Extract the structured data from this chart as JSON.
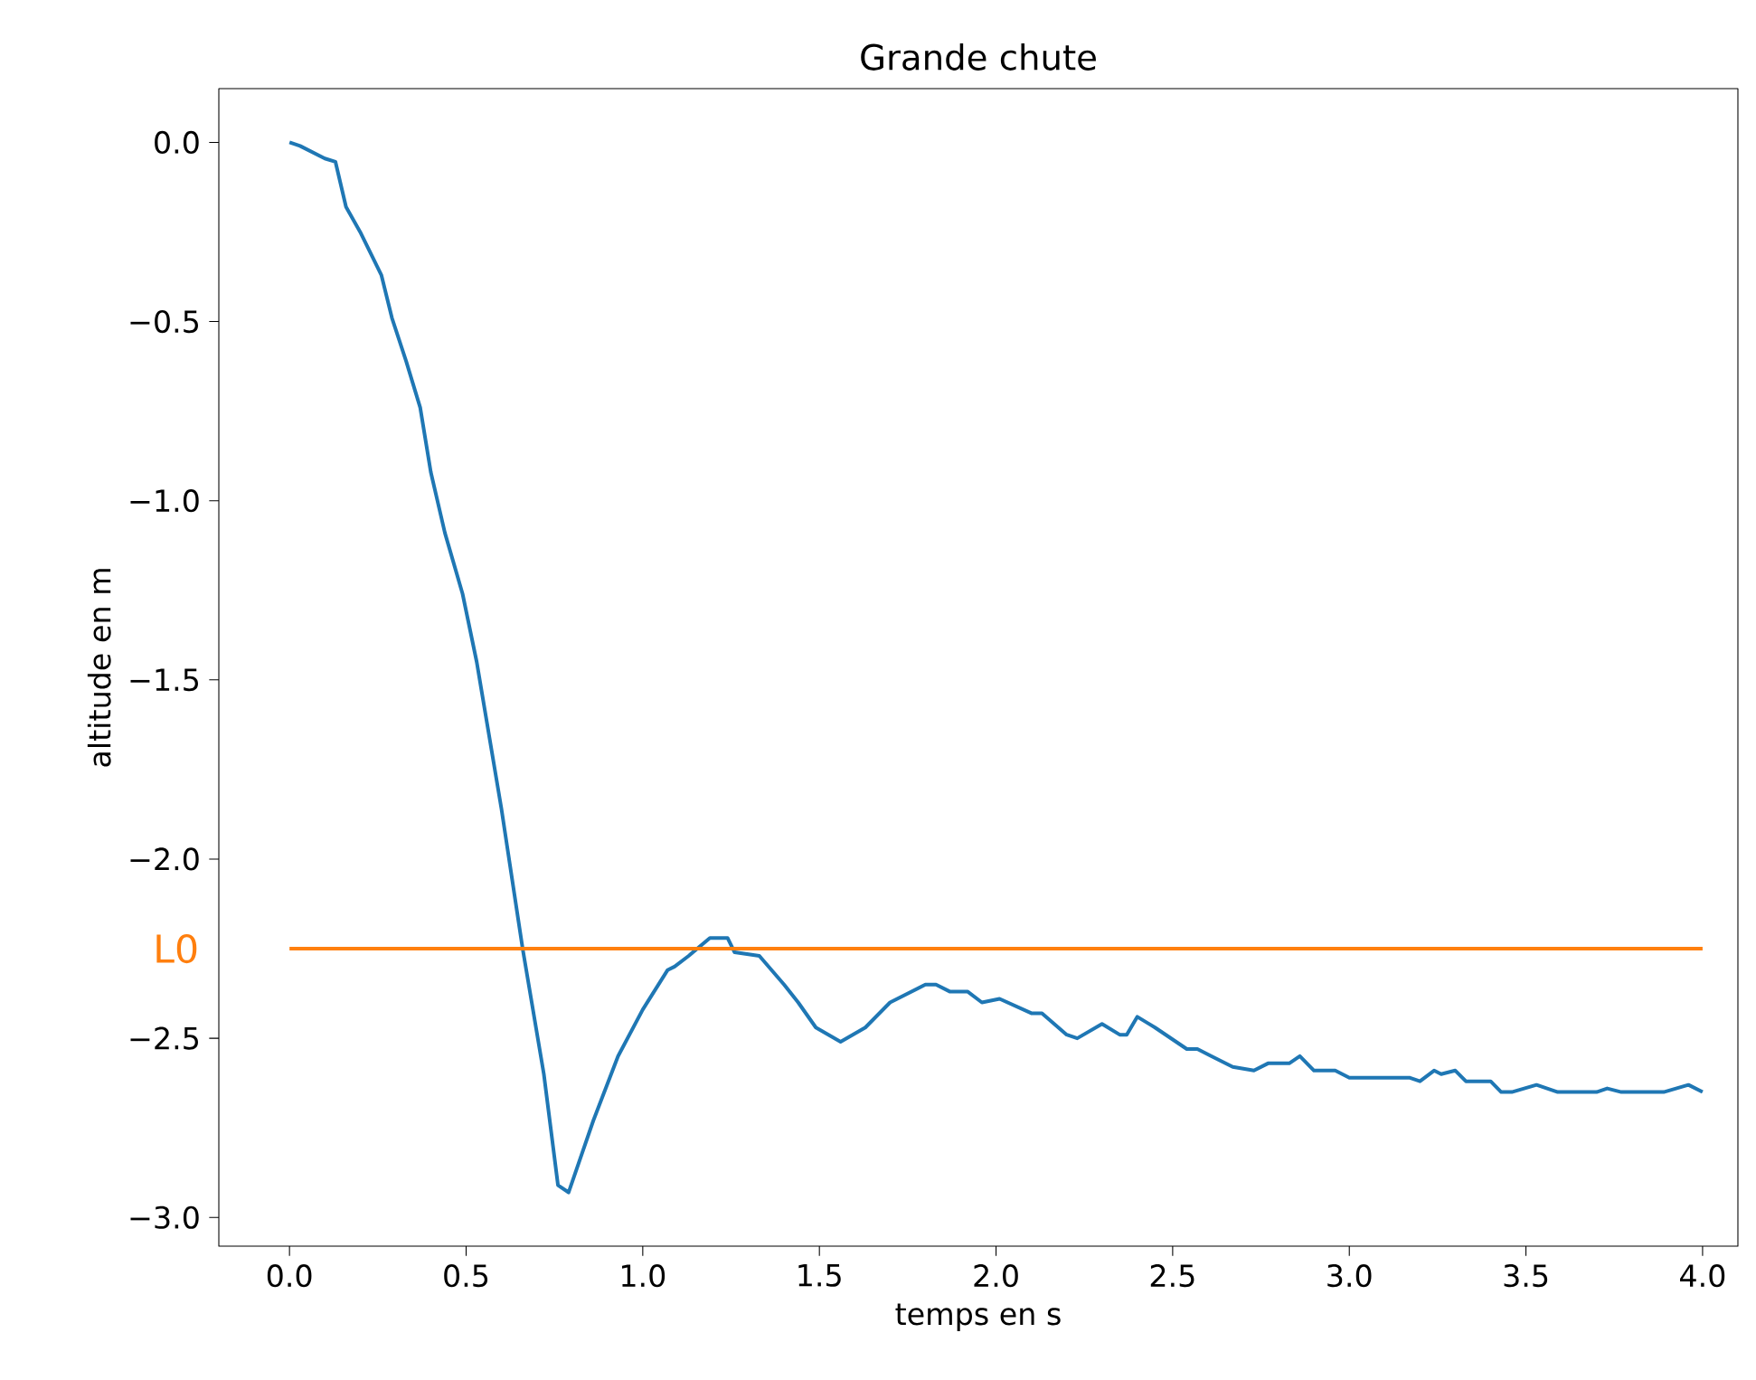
{
  "chart_data": {
    "type": "line",
    "title": "Grande chute",
    "xlabel": "temps en s",
    "ylabel": "altitude en m",
    "xlim": [
      -0.2,
      4.1
    ],
    "ylim": [
      -3.08,
      0.15
    ],
    "xticks": [
      {
        "value": 0,
        "label": "0.0"
      },
      {
        "value": 0.5,
        "label": "0.5"
      },
      {
        "value": 1,
        "label": "1.0"
      },
      {
        "value": 1.5,
        "label": "1.5"
      },
      {
        "value": 2,
        "label": "2.0"
      },
      {
        "value": 2.5,
        "label": "2.5"
      },
      {
        "value": 3,
        "label": "3.0"
      },
      {
        "value": 3.5,
        "label": "3.5"
      },
      {
        "value": 4,
        "label": "4.0"
      }
    ],
    "yticks": [
      {
        "value": 0,
        "label": "0.0"
      },
      {
        "value": -0.5,
        "label": "−0.5"
      },
      {
        "value": -1,
        "label": "−1.0"
      },
      {
        "value": -1.5,
        "label": "−1.5"
      },
      {
        "value": -2,
        "label": "−2.0"
      },
      {
        "value": -2.5,
        "label": "−2.5"
      },
      {
        "value": -3,
        "label": "−3.0"
      }
    ],
    "grid": false,
    "legend": false,
    "marker": "none",
    "line_style": "solid",
    "series": [
      {
        "color": "#1f77b4",
        "x": [
          0,
          0.03,
          0.1,
          0.13,
          0.16,
          0.2,
          0.26,
          0.29,
          0.33,
          0.37,
          0.4,
          0.44,
          0.49,
          0.53,
          0.6,
          0.66,
          0.72,
          0.76,
          0.79,
          0.86,
          0.93,
          1.0,
          1.07,
          1.09,
          1.13,
          1.19,
          1.24,
          1.26,
          1.33,
          1.4,
          1.44,
          1.49,
          1.56,
          1.63,
          1.7,
          1.8,
          1.83,
          1.87,
          1.92,
          1.96,
          2.01,
          2.1,
          2.13,
          2.2,
          2.23,
          2.3,
          2.35,
          2.37,
          2.4,
          2.45,
          2.54,
          2.57,
          2.61,
          2.67,
          2.73,
          2.77,
          2.83,
          2.86,
          2.9,
          2.96,
          3.0,
          3.17,
          3.2,
          3.24,
          3.26,
          3.3,
          3.33,
          3.4,
          3.43,
          3.46,
          3.53,
          3.59,
          3.7,
          3.73,
          3.77,
          3.89,
          3.96,
          4.0
        ],
        "values": [
          0,
          -0.01,
          -0.045,
          -0.054,
          -0.18,
          -0.25,
          -0.37,
          -0.49,
          -0.61,
          -0.74,
          -0.92,
          -1.09,
          -1.26,
          -1.45,
          -1.86,
          -2.25,
          -2.6,
          -2.91,
          -2.93,
          -2.73,
          -2.55,
          -2.42,
          -2.31,
          -2.3,
          -2.27,
          -2.22,
          -2.22,
          -2.26,
          -2.27,
          -2.35,
          -2.4,
          -2.47,
          -2.51,
          -2.47,
          -2.4,
          -2.35,
          -2.35,
          -2.37,
          -2.37,
          -2.4,
          -2.39,
          -2.43,
          -2.43,
          -2.49,
          -2.5,
          -2.46,
          -2.49,
          -2.49,
          -2.44,
          -2.47,
          -2.53,
          -2.53,
          -2.55,
          -2.58,
          -2.59,
          -2.57,
          -2.57,
          -2.55,
          -2.59,
          -2.59,
          -2.61,
          -2.61,
          -2.62,
          -2.59,
          -2.6,
          -2.59,
          -2.62,
          -2.62,
          -2.65,
          -2.65,
          -2.63,
          -2.65,
          -2.65,
          -2.64,
          -2.65,
          -2.65,
          -2.63,
          -2.65
        ]
      },
      {
        "name": "L0",
        "color": "#ff7f0e",
        "x": [
          0,
          4
        ],
        "values": [
          -2.25,
          -2.25
        ]
      }
    ]
  }
}
